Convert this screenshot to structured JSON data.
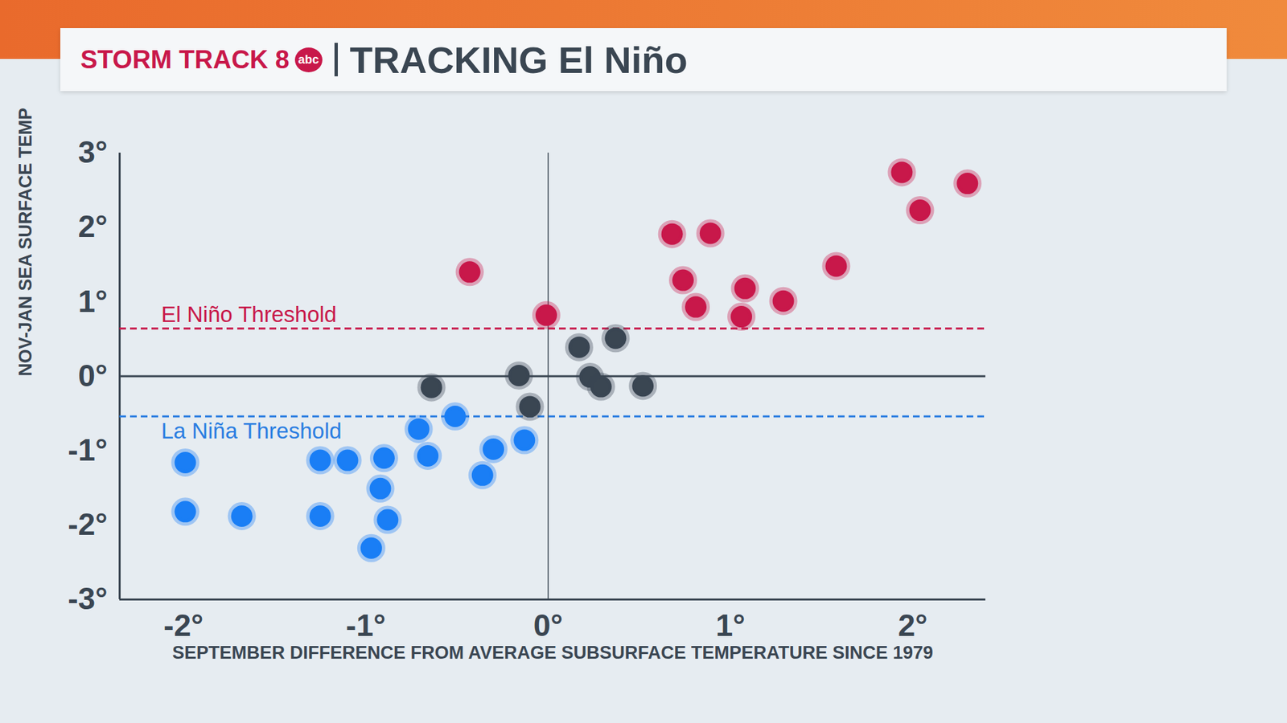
{
  "chart_data": {
    "type": "scatter",
    "brand": "STORM TRACK 8",
    "network": "abc",
    "title": "TRACKING El Niño",
    "x_label": "SEPTEMBER DIFFERENCE FROM AVERAGE SUBSURFACE TEMPERATURE SINCE 1979",
    "y_label": "NOV-JAN SEA SURFACE TEMPERATURE",
    "xlim": [
      -2.35,
      2.4
    ],
    "ylim": [
      -3,
      3
    ],
    "xticks": [
      {
        "value": -2,
        "label": "-2°"
      },
      {
        "value": -1,
        "label": "-1°"
      },
      {
        "value": 0,
        "label": "0°"
      },
      {
        "value": 1,
        "label": "1°"
      },
      {
        "value": 2,
        "label": "2°"
      }
    ],
    "yticks": [
      {
        "value": -3,
        "label": "-3°"
      },
      {
        "value": -2,
        "label": "-2°"
      },
      {
        "value": -1,
        "label": "-1°"
      },
      {
        "value": 0,
        "label": "0°"
      },
      {
        "value": 1,
        "label": "1°"
      },
      {
        "value": 2,
        "label": "2°"
      },
      {
        "value": 3,
        "label": "3°"
      }
    ],
    "thresholds": [
      {
        "label": "El Niño Threshold",
        "value": 0.64,
        "color": "#c8184a",
        "line_style": "dashed"
      },
      {
        "label": "La Niña Threshold",
        "value": -0.54,
        "color": "#2a7de1",
        "line_style": "dashed"
      }
    ],
    "series": [
      {
        "color": "#c8184a",
        "x": [
          -0.43,
          -0.01,
          0.68,
          0.89,
          0.74,
          0.81,
          1.08,
          1.06,
          1.29,
          1.58,
          1.94,
          2.3,
          2.04
        ],
        "values": [
          1.4,
          0.82,
          1.91,
          1.92,
          1.29,
          0.93,
          1.18,
          0.8,
          1.01,
          1.48,
          2.74,
          2.59,
          2.23
        ]
      },
      {
        "color": "#3a4652",
        "x": [
          -0.64,
          -0.16,
          -0.1,
          0.17,
          0.37,
          0.23,
          0.29,
          0.52
        ],
        "values": [
          -0.15,
          0.01,
          -0.41,
          0.39,
          0.51,
          -0.01,
          -0.14,
          -0.13
        ]
      },
      {
        "color": "#1a7ef5",
        "x": [
          -1.99,
          -1.99,
          -1.68,
          -1.25,
          -1.1,
          -0.9,
          -0.92,
          -0.88,
          -1.25,
          -0.97,
          -0.71,
          -0.66,
          -0.51,
          -0.3,
          -0.36,
          -0.13
        ],
        "values": [
          -1.16,
          -1.82,
          -1.88,
          -1.13,
          -1.13,
          -1.1,
          -1.51,
          -1.93,
          -1.88,
          -2.31,
          -0.71,
          -1.07,
          -0.54,
          -0.98,
          -1.33,
          -0.86
        ]
      }
    ]
  }
}
